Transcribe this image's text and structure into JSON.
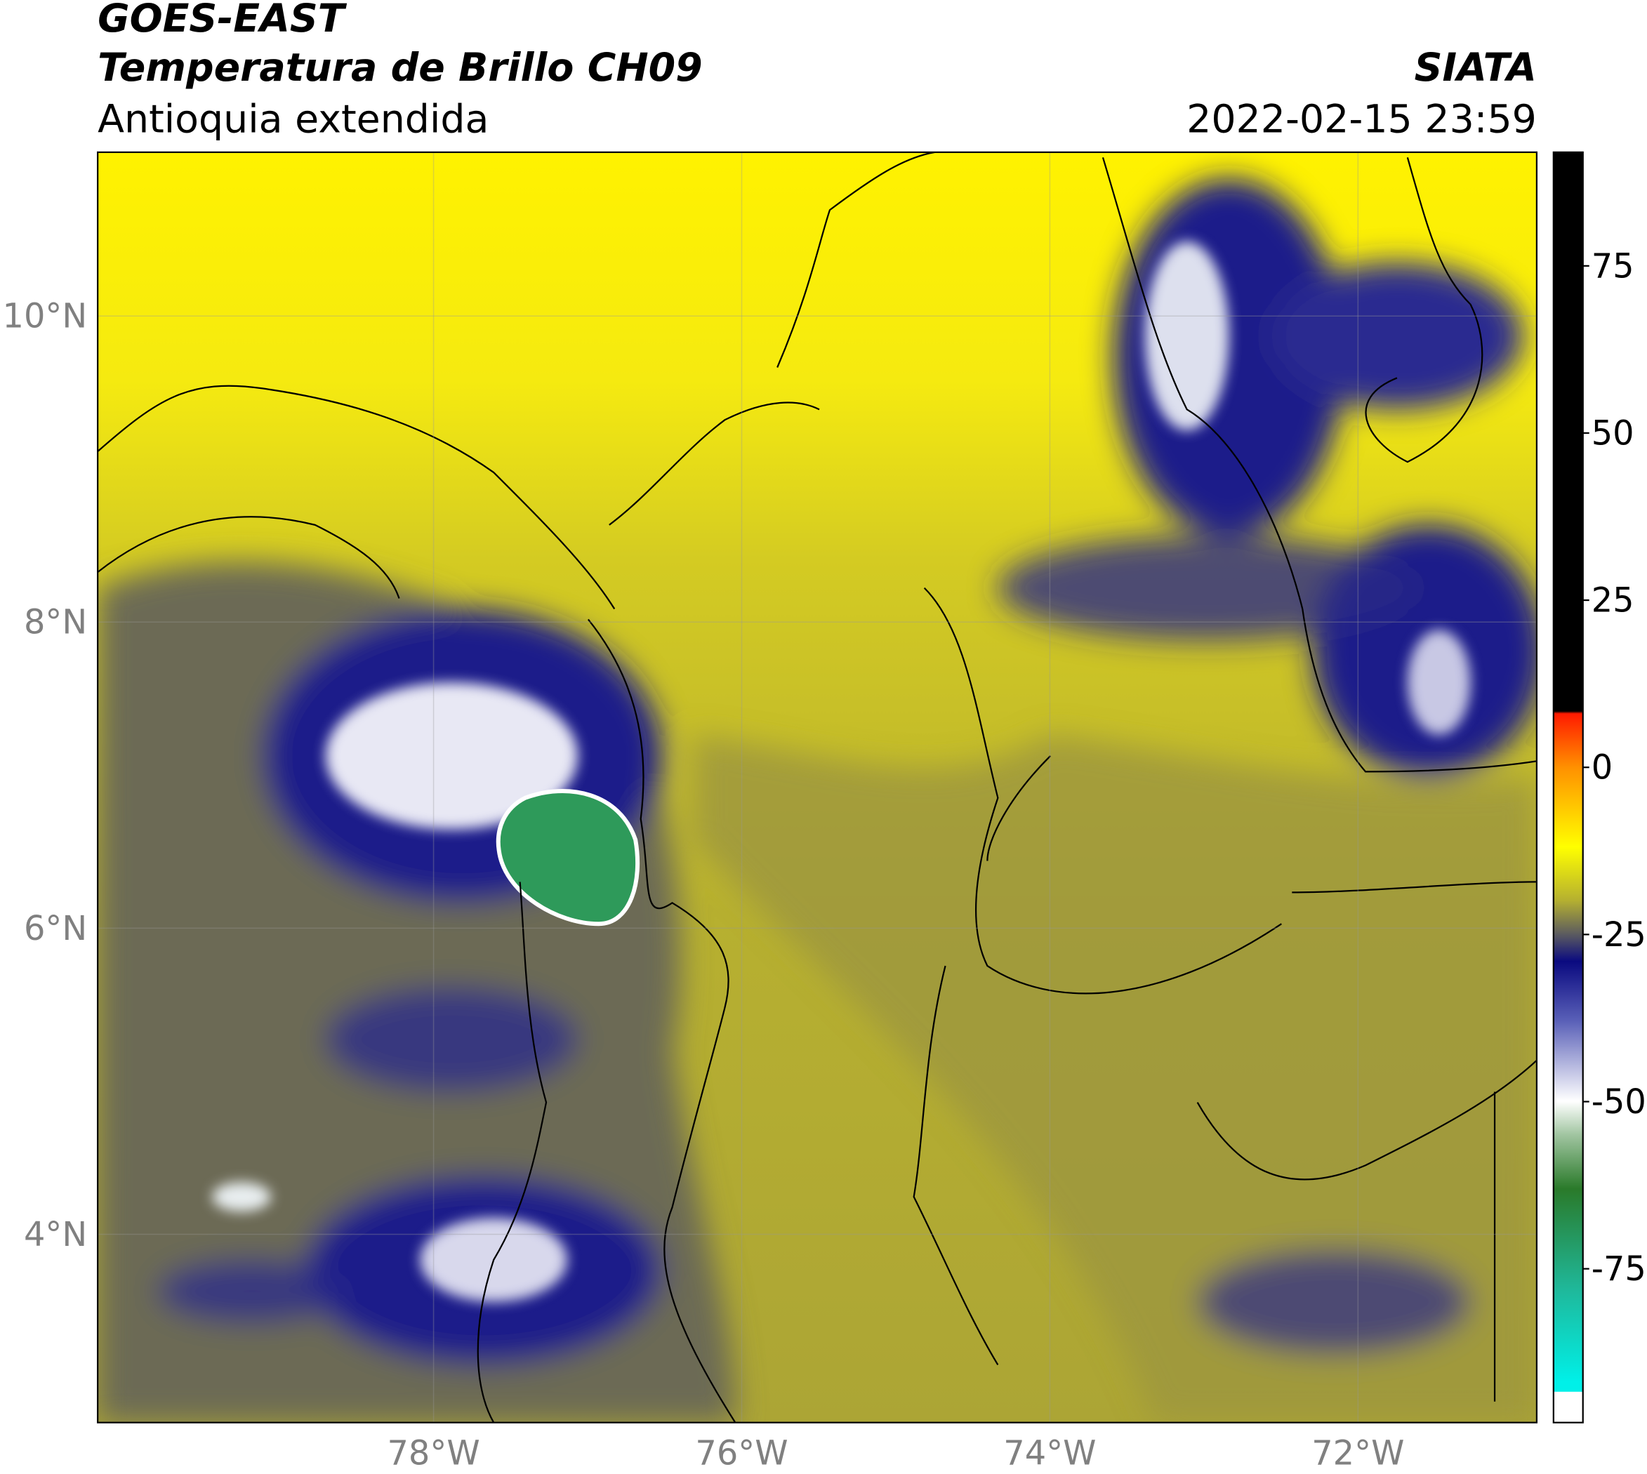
{
  "header": {
    "title": "GOES-EAST",
    "subtitle": "Temperatura de Brillo CH09",
    "region": "Antioquia extendida",
    "source": "SIATA",
    "timestamp": "2022-02-15 23:59"
  },
  "map": {
    "xlim": [
      -80.18,
      -70.84
    ],
    "ylim": [
      2.77,
      11.07
    ],
    "xticks": [
      {
        "value": -78,
        "label": "78°W"
      },
      {
        "value": -76,
        "label": "76°W"
      },
      {
        "value": -74,
        "label": "74°W"
      },
      {
        "value": -72,
        "label": "72°W"
      }
    ],
    "yticks": [
      {
        "value": 4,
        "label": "4°N"
      },
      {
        "value": 6,
        "label": "6°N"
      },
      {
        "value": 8,
        "label": "8°N"
      },
      {
        "value": 10,
        "label": "10°N"
      }
    ],
    "grid": true
  },
  "colorbar": {
    "lim": [
      -98,
      92
    ],
    "ticks": [
      75,
      50,
      25,
      0,
      -25,
      -50,
      -75
    ]
  }
}
